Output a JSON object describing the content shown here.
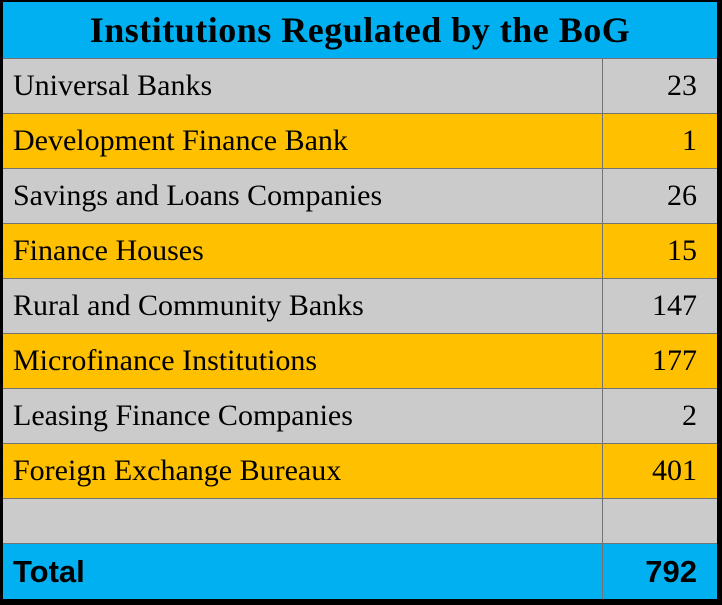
{
  "title": "Institutions Regulated by the BoG",
  "colors": {
    "header_bg": "#00B0F0",
    "gray_row_bg": "#CBCBCB",
    "gold_row_bg": "#FFC000",
    "total_row_bg": "#00B0F0",
    "grid_line": "#737373",
    "outer_border": "#000000",
    "text": "#000000"
  },
  "table": {
    "rows": [
      {
        "label": "Universal Banks",
        "value": "23"
      },
      {
        "label": "Development Finance Bank",
        "value": "1"
      },
      {
        "label": "Savings and Loans Companies",
        "value": "26"
      },
      {
        "label": "Finance Houses",
        "value": "15"
      },
      {
        "label": "Rural and Community Banks",
        "value": "147"
      },
      {
        "label": "Microfinance Institutions",
        "value": "177"
      },
      {
        "label": "Leasing Finance Companies",
        "value": "2"
      },
      {
        "label": "Foreign Exchange Bureaux",
        "value": "401"
      },
      {
        "label": "",
        "value": ""
      }
    ],
    "total": {
      "label": "Total",
      "value": "792"
    }
  },
  "chart_data": {
    "type": "table",
    "title": "Institutions Regulated by the BoG",
    "categories": [
      "Universal Banks",
      "Development Finance Bank",
      "Savings and Loans Companies",
      "Finance Houses",
      "Rural and Community Banks",
      "Microfinance Institutions",
      "Leasing Finance Companies",
      "Foreign Exchange Bureaux"
    ],
    "values": [
      23,
      1,
      26,
      15,
      147,
      177,
      2,
      401
    ],
    "total_label": "Total",
    "total_value": 792
  }
}
